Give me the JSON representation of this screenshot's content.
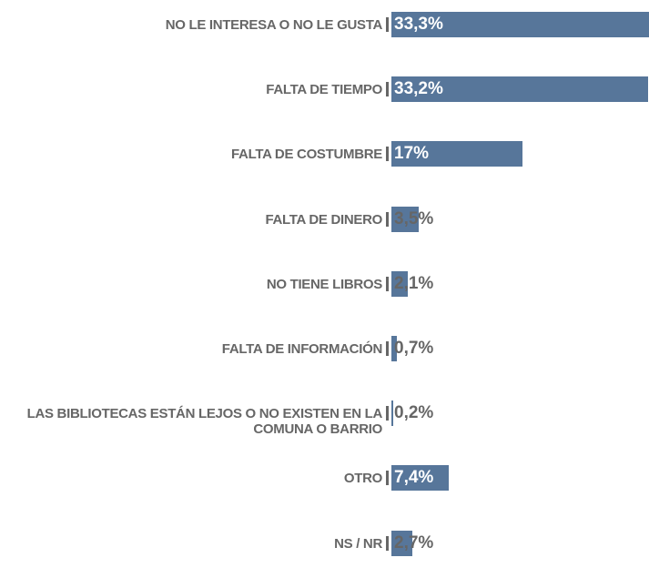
{
  "chart_data": {
    "type": "bar",
    "orientation": "horizontal",
    "categories": [
      "NO LE INTERESA O NO LE GUSTA",
      "FALTA DE TIEMPO",
      "FALTA DE COSTUMBRE",
      "FALTA DE DINERO",
      "NO TIENE LIBROS",
      "FALTA DE INFORMACIÓN",
      "LAS BIBLIOTECAS ESTÁN LEJOS O NO EXISTEN EN LA COMUNA O BARRIO",
      "OTRO",
      "NS / NR"
    ],
    "values": [
      33.3,
      33.2,
      17,
      3.5,
      2.1,
      0.7,
      0.2,
      7.4,
      2.7
    ],
    "value_labels": [
      "33,3%",
      "33,2%",
      "17%",
      "3,5%",
      "2,1%",
      "0,7%",
      "0,2%",
      "7,4%",
      "2,7%"
    ],
    "color": "#57769a"
  }
}
